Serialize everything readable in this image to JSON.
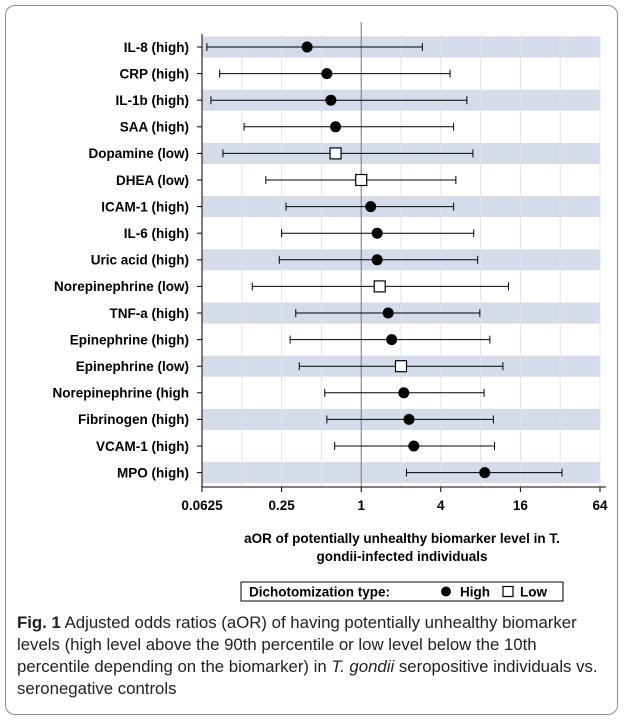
{
  "chart_data": {
    "type": "forest",
    "xscale": "log2",
    "xlim": [
      0.0625,
      64
    ],
    "xticks": [
      "0.0625",
      "0.25",
      "1",
      "4",
      "16",
      "64"
    ],
    "xtick_values": [
      0.0625,
      0.25,
      1,
      4,
      16,
      64
    ],
    "reference_line": 1,
    "xlabel_line1": "aOR of potentially unhealthy biomarker level in T.",
    "xlabel_line2": "gondii-infected individuals",
    "alternating_band_color": "#d5dbeb",
    "rows": [
      {
        "label": "IL-8 (high)",
        "type": "High",
        "aor": 0.39,
        "lower": 0.068,
        "upper": 2.9
      },
      {
        "label": "CRP (high)",
        "type": "High",
        "aor": 0.55,
        "lower": 0.085,
        "upper": 4.7
      },
      {
        "label": "IL-1b (high)",
        "type": "High",
        "aor": 0.59,
        "lower": 0.073,
        "upper": 6.3
      },
      {
        "label": "SAA (high)",
        "type": "High",
        "aor": 0.64,
        "lower": 0.13,
        "upper": 5.0
      },
      {
        "label": "Dopamine (low)",
        "type": "Low",
        "aor": 0.64,
        "lower": 0.09,
        "upper": 7.0
      },
      {
        "label": "DHEA (low)",
        "type": "Low",
        "aor": 1.0,
        "lower": 0.19,
        "upper": 5.2
      },
      {
        "label": "ICAM-1 (high)",
        "type": "High",
        "aor": 1.18,
        "lower": 0.27,
        "upper": 5.0
      },
      {
        "label": "IL-6 (high)",
        "type": "High",
        "aor": 1.32,
        "lower": 0.25,
        "upper": 7.1
      },
      {
        "label": "Uric acid (high)",
        "type": "High",
        "aor": 1.32,
        "lower": 0.24,
        "upper": 7.6
      },
      {
        "label": "Norepinephrine (low)",
        "type": "Low",
        "aor": 1.38,
        "lower": 0.15,
        "upper": 13.0
      },
      {
        "label": "TNF-a (high)",
        "type": "High",
        "aor": 1.6,
        "lower": 0.32,
        "upper": 7.9
      },
      {
        "label": "Epinephrine (high)",
        "type": "High",
        "aor": 1.7,
        "lower": 0.29,
        "upper": 9.4
      },
      {
        "label": "Epinephrine (low)",
        "type": "Low",
        "aor": 2.0,
        "lower": 0.34,
        "upper": 11.8
      },
      {
        "label": "Norepinephrine (high",
        "type": "High",
        "aor": 2.1,
        "lower": 0.53,
        "upper": 8.5
      },
      {
        "label": "Fibrinogen (high)",
        "type": "High",
        "aor": 2.3,
        "lower": 0.55,
        "upper": 10.0
      },
      {
        "label": "VCAM-1 (high)",
        "type": "High",
        "aor": 2.5,
        "lower": 0.63,
        "upper": 10.2
      },
      {
        "label": "MPO (high)",
        "type": "High",
        "aor": 8.6,
        "lower": 2.2,
        "upper": 33.0
      }
    ],
    "legend": {
      "title": "Dichotomization type:",
      "entries": [
        {
          "label": "High",
          "marker": "filled-circle"
        },
        {
          "label": "Low",
          "marker": "open-square"
        }
      ],
      "placement": "bottom-center"
    }
  },
  "caption": {
    "label": "Fig. 1",
    "text_part1": " Adjusted odds ratios (aOR) of having potentially unhealthy biomarker levels (high level above the 90th percentile or low level below the 10th percentile depending on the biomarker) in ",
    "italic": "T. gondii",
    "text_part2": " seropositive individuals vs. seronegative controls"
  }
}
